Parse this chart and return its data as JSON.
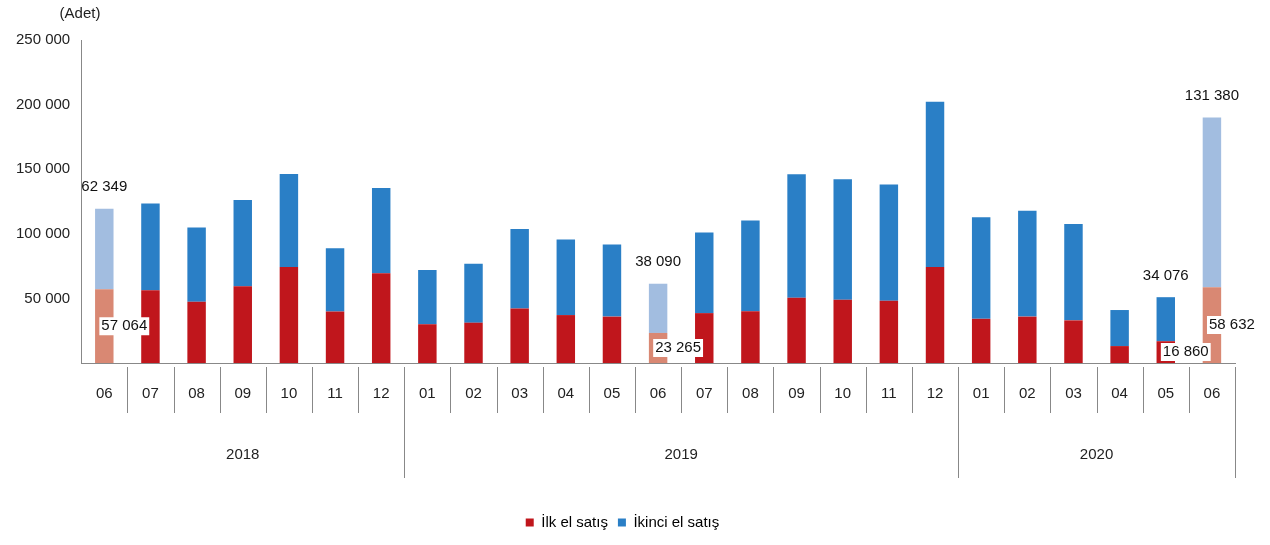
{
  "chart_data": {
    "type": "bar",
    "stacked": true,
    "ylabel": "(Adet)",
    "categories": [
      "06",
      "07",
      "08",
      "09",
      "10",
      "11",
      "12",
      "01",
      "02",
      "03",
      "04",
      "05",
      "06",
      "07",
      "08",
      "09",
      "10",
      "11",
      "12",
      "01",
      "02",
      "03",
      "04",
      "05",
      "06"
    ],
    "annotations": [
      "2018",
      "2019",
      "2020"
    ],
    "series": [
      {
        "name": "İlk el satış",
        "color": "#c0161c",
        "colors": [
          "#d98873",
          "#c0161c",
          "#c0161c",
          "#c0161c",
          "#c0161c",
          "#c0161c",
          "#c0161c",
          "#c0161c",
          "#c0161c",
          "#c0161c",
          "#c0161c",
          "#c0161c",
          "#d98873",
          "#c0161c",
          "#c0161c",
          "#c0161c",
          "#c0161c",
          "#c0161c",
          "#c0161c",
          "#c0161c",
          "#c0161c",
          "#c0161c",
          "#c0161c",
          "#c0161c",
          "#d98873"
        ],
        "values": [
          57064,
          56400,
          47500,
          59400,
          74300,
          39800,
          69500,
          30000,
          31200,
          42200,
          37100,
          35900,
          23265,
          38600,
          40100,
          50500,
          49000,
          48100,
          74300,
          34200,
          35900,
          33000,
          13100,
          16860,
          58632
        ],
        "value_labels": [
          "57 064",
          null,
          null,
          null,
          null,
          null,
          null,
          null,
          null,
          null,
          null,
          null,
          "23 265",
          null,
          null,
          null,
          null,
          null,
          null,
          null,
          null,
          null,
          null,
          "16 860",
          "58 632"
        ]
      },
      {
        "name": "İkinci el satış",
        "color": "#2a7fc6",
        "colors": [
          "#a2bde0",
          "#2a7fc6",
          "#2a7fc6",
          "#2a7fc6",
          "#2a7fc6",
          "#2a7fc6",
          "#2a7fc6",
          "#2a7fc6",
          "#2a7fc6",
          "#2a7fc6",
          "#2a7fc6",
          "#2a7fc6",
          "#a2bde0",
          "#2a7fc6",
          "#2a7fc6",
          "#2a7fc6",
          "#2a7fc6",
          "#2a7fc6",
          "#2a7fc6",
          "#2a7fc6",
          "#2a7fc6",
          "#2a7fc6",
          "#2a7fc6",
          "#2a7fc6",
          "#a2bde0"
        ],
        "values": [
          62349,
          67100,
          57300,
          66800,
          71900,
          49000,
          65900,
          41900,
          45700,
          61500,
          58500,
          55900,
          38090,
          62400,
          70100,
          95600,
          93300,
          90000,
          128000,
          78700,
          82000,
          74500,
          27900,
          34076,
          131380
        ],
        "value_labels": [
          "62 349",
          null,
          null,
          null,
          null,
          null,
          null,
          null,
          null,
          null,
          null,
          null,
          "38 090",
          null,
          null,
          null,
          null,
          null,
          null,
          null,
          null,
          null,
          null,
          "34 076",
          "131 380"
        ]
      }
    ],
    "ylim": [
      0,
      250000
    ],
    "yticks": [
      {
        "value": 50000,
        "label": "50 000"
      },
      {
        "value": 100000,
        "label": "100 000"
      },
      {
        "value": 150000,
        "label": "150 000"
      },
      {
        "value": 200000,
        "label": "200 000"
      },
      {
        "value": 250000,
        "label": "250 000"
      }
    ],
    "grid": false,
    "legend": "bottom"
  }
}
